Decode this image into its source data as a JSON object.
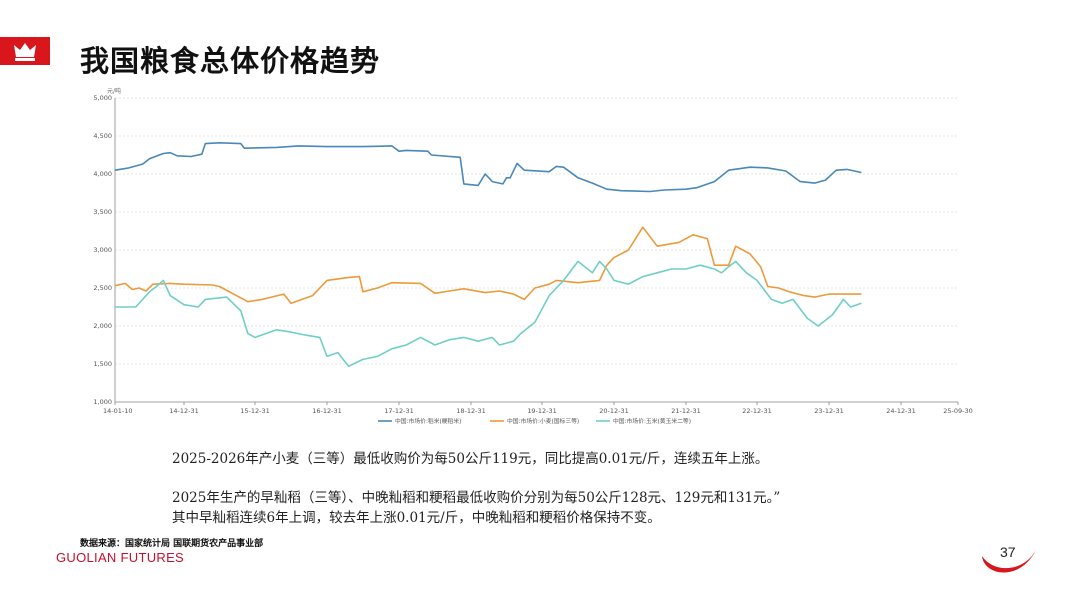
{
  "header": {
    "title": "我国粮食总体价格趋势"
  },
  "colors": {
    "brand_red": "#d9161c",
    "rice": "#4a88b7",
    "wheat": "#ec9a3c",
    "corn": "#6fcfc8",
    "grid": "#dddddd"
  },
  "chart_data": {
    "type": "line",
    "unit": "元/吨",
    "x_ticks": [
      "14-01-10",
      "14-12-31",
      "15-12-31",
      "16-12-31",
      "17-12-31",
      "18-12-31",
      "19-12-31",
      "20-12-31",
      "21-12-31",
      "22-12-31",
      "23-12-31",
      "24-12-31",
      "25-09-30"
    ],
    "y_ticks": [
      "5,000",
      "4,500",
      "4,000",
      "3,500",
      "3,000",
      "2,500",
      "2,000",
      "1,500",
      "1,000"
    ],
    "ylim": [
      1000,
      5000
    ],
    "grid": true,
    "legend_position": "bottom",
    "series": [
      {
        "name": "中国:市场价:稻米(粳稻米)",
        "color": "#4a88b7",
        "points": [
          [
            0,
            4050
          ],
          [
            0.2,
            4080
          ],
          [
            0.4,
            4130
          ],
          [
            0.5,
            4200
          ],
          [
            0.7,
            4270
          ],
          [
            0.8,
            4280
          ],
          [
            0.9,
            4240
          ],
          [
            1.1,
            4230
          ],
          [
            1.25,
            4260
          ],
          [
            1.3,
            4400
          ],
          [
            1.5,
            4410
          ],
          [
            1.8,
            4400
          ],
          [
            1.85,
            4340
          ],
          [
            2.3,
            4350
          ],
          [
            2.6,
            4370
          ],
          [
            3.0,
            4360
          ],
          [
            3.5,
            4360
          ],
          [
            3.9,
            4370
          ],
          [
            4.0,
            4300
          ],
          [
            4.1,
            4310
          ],
          [
            4.4,
            4300
          ],
          [
            4.45,
            4250
          ],
          [
            4.85,
            4220
          ],
          [
            4.9,
            3870
          ],
          [
            5.1,
            3850
          ],
          [
            5.2,
            4000
          ],
          [
            5.3,
            3900
          ],
          [
            5.45,
            3870
          ],
          [
            5.5,
            3950
          ],
          [
            5.55,
            3950
          ],
          [
            5.65,
            4140
          ],
          [
            5.75,
            4050
          ],
          [
            6.1,
            4030
          ],
          [
            6.2,
            4100
          ],
          [
            6.3,
            4090
          ],
          [
            6.5,
            3950
          ],
          [
            6.7,
            3880
          ],
          [
            6.9,
            3800
          ],
          [
            7.1,
            3780
          ],
          [
            7.5,
            3770
          ],
          [
            7.7,
            3790
          ],
          [
            8.0,
            3800
          ],
          [
            8.15,
            3820
          ],
          [
            8.4,
            3900
          ],
          [
            8.6,
            4050
          ],
          [
            8.9,
            4090
          ],
          [
            9.15,
            4080
          ],
          [
            9.4,
            4040
          ],
          [
            9.6,
            3900
          ],
          [
            9.8,
            3880
          ],
          [
            9.95,
            3920
          ],
          [
            10.1,
            4050
          ],
          [
            10.25,
            4060
          ],
          [
            10.45,
            4020
          ]
        ]
      },
      {
        "name": "中国:市场价:小麦(国标三等)",
        "color": "#ec9a3c",
        "points": [
          [
            0,
            2530
          ],
          [
            0.15,
            2560
          ],
          [
            0.25,
            2480
          ],
          [
            0.35,
            2500
          ],
          [
            0.45,
            2460
          ],
          [
            0.55,
            2550
          ],
          [
            0.8,
            2560
          ],
          [
            1.0,
            2550
          ],
          [
            1.4,
            2540
          ],
          [
            1.5,
            2520
          ],
          [
            1.9,
            2320
          ],
          [
            2.1,
            2350
          ],
          [
            2.4,
            2420
          ],
          [
            2.5,
            2300
          ],
          [
            2.8,
            2400
          ],
          [
            3.0,
            2600
          ],
          [
            3.3,
            2640
          ],
          [
            3.45,
            2650
          ],
          [
            3.5,
            2450
          ],
          [
            3.7,
            2500
          ],
          [
            3.9,
            2570
          ],
          [
            4.3,
            2560
          ],
          [
            4.5,
            2430
          ],
          [
            4.7,
            2460
          ],
          [
            4.9,
            2490
          ],
          [
            5.2,
            2440
          ],
          [
            5.4,
            2460
          ],
          [
            5.6,
            2420
          ],
          [
            5.75,
            2350
          ],
          [
            5.9,
            2500
          ],
          [
            6.1,
            2550
          ],
          [
            6.2,
            2600
          ],
          [
            6.5,
            2570
          ],
          [
            6.8,
            2600
          ],
          [
            6.9,
            2800
          ],
          [
            7.0,
            2900
          ],
          [
            7.2,
            3000
          ],
          [
            7.4,
            3300
          ],
          [
            7.6,
            3050
          ],
          [
            7.9,
            3100
          ],
          [
            8.1,
            3200
          ],
          [
            8.3,
            3150
          ],
          [
            8.4,
            2800
          ],
          [
            8.6,
            2800
          ],
          [
            8.7,
            3050
          ],
          [
            8.9,
            2950
          ],
          [
            9.05,
            2780
          ],
          [
            9.15,
            2520
          ],
          [
            9.3,
            2500
          ],
          [
            9.45,
            2450
          ],
          [
            9.65,
            2400
          ],
          [
            9.8,
            2380
          ],
          [
            10.0,
            2420
          ],
          [
            10.45,
            2420
          ]
        ]
      },
      {
        "name": "中国:市场价:玉米(黄玉米二等)",
        "color": "#6fcfc8",
        "points": [
          [
            0,
            2250
          ],
          [
            0.3,
            2250
          ],
          [
            0.5,
            2450
          ],
          [
            0.6,
            2520
          ],
          [
            0.7,
            2600
          ],
          [
            0.8,
            2400
          ],
          [
            1.0,
            2280
          ],
          [
            1.2,
            2250
          ],
          [
            1.3,
            2350
          ],
          [
            1.6,
            2380
          ],
          [
            1.8,
            2200
          ],
          [
            1.9,
            1900
          ],
          [
            2.0,
            1850
          ],
          [
            2.3,
            1950
          ],
          [
            2.5,
            1920
          ],
          [
            2.7,
            1880
          ],
          [
            2.9,
            1850
          ],
          [
            3.0,
            1600
          ],
          [
            3.15,
            1650
          ],
          [
            3.3,
            1470
          ],
          [
            3.5,
            1560
          ],
          [
            3.7,
            1600
          ],
          [
            3.9,
            1700
          ],
          [
            4.1,
            1750
          ],
          [
            4.2,
            1800
          ],
          [
            4.3,
            1850
          ],
          [
            4.5,
            1750
          ],
          [
            4.7,
            1820
          ],
          [
            4.9,
            1850
          ],
          [
            5.1,
            1800
          ],
          [
            5.3,
            1850
          ],
          [
            5.4,
            1750
          ],
          [
            5.6,
            1800
          ],
          [
            5.7,
            1900
          ],
          [
            5.9,
            2050
          ],
          [
            6.1,
            2400
          ],
          [
            6.3,
            2600
          ],
          [
            6.5,
            2850
          ],
          [
            6.7,
            2700
          ],
          [
            6.8,
            2850
          ],
          [
            6.9,
            2750
          ],
          [
            7.0,
            2600
          ],
          [
            7.2,
            2550
          ],
          [
            7.4,
            2650
          ],
          [
            7.6,
            2700
          ],
          [
            7.8,
            2750
          ],
          [
            8.0,
            2750
          ],
          [
            8.2,
            2800
          ],
          [
            8.4,
            2750
          ],
          [
            8.5,
            2700
          ],
          [
            8.6,
            2780
          ],
          [
            8.7,
            2850
          ],
          [
            8.85,
            2700
          ],
          [
            9.0,
            2600
          ],
          [
            9.2,
            2350
          ],
          [
            9.35,
            2300
          ],
          [
            9.5,
            2350
          ],
          [
            9.7,
            2100
          ],
          [
            9.85,
            2000
          ],
          [
            10.05,
            2150
          ],
          [
            10.2,
            2350
          ],
          [
            10.3,
            2250
          ],
          [
            10.45,
            2300
          ]
        ]
      }
    ]
  },
  "notes": {
    "line1": "2025-2026年产小麦（三等）最低收购价为每50公斤119元，同比提高0.01元/斤，连续五年上涨。",
    "line2": "2025年生产的早籼稻（三等）、中晚籼稻和粳稻最低收购价分别为每50公斤128元、129元和131元。”",
    "line3": "其中早籼稻连续6年上调，较去年上涨0.01元/斤，中晚籼稻和粳稻价格保持不变。"
  },
  "footer": {
    "source": "数据来源：国家统计局  国联期货农产品事业部",
    "brand": "GUOLIAN FUTURES",
    "page_number": "37"
  }
}
